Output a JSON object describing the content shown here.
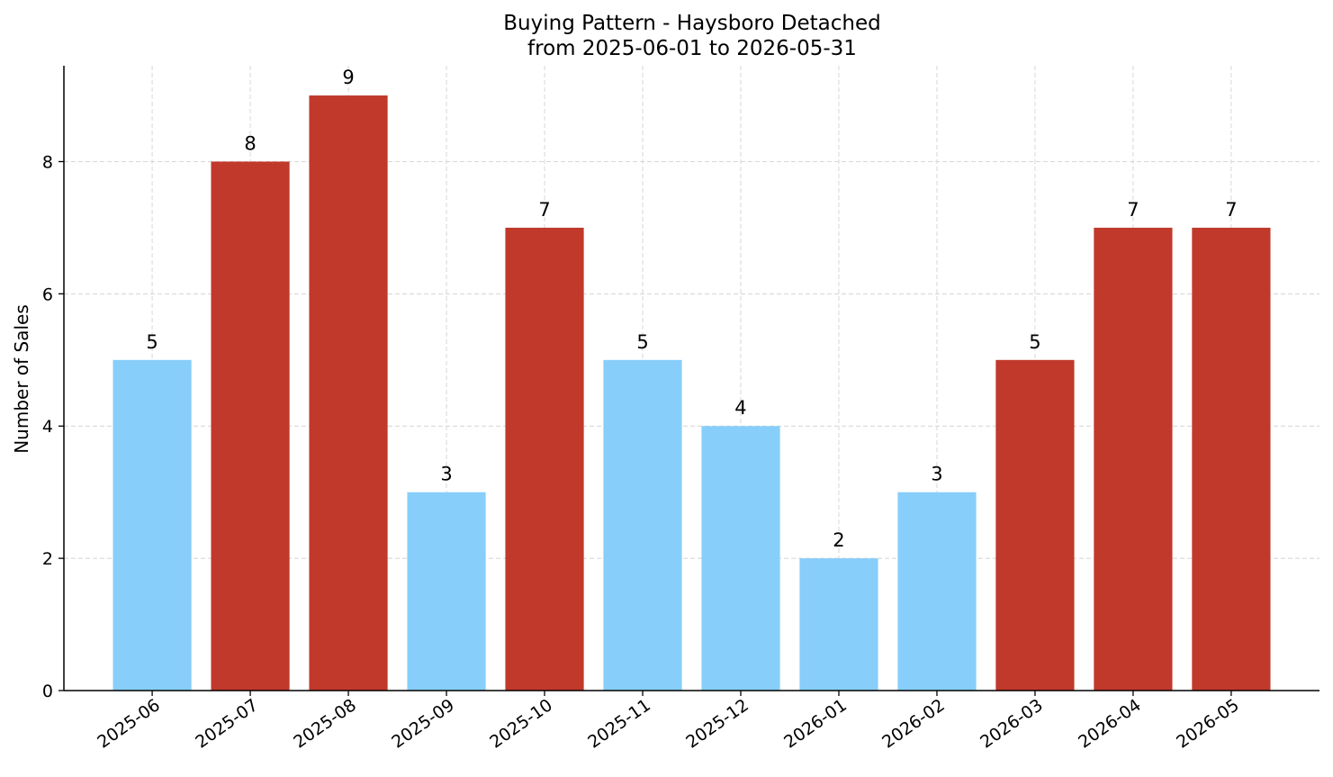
{
  "chart_data": {
    "type": "bar",
    "title": "Buying Pattern - Haysboro Detached",
    "subtitle": "from 2025-06-01 to 2026-05-31",
    "xlabel": "",
    "ylabel": "Number of Sales",
    "categories": [
      "2025-06",
      "2025-07",
      "2025-08",
      "2025-09",
      "2025-10",
      "2025-11",
      "2025-12",
      "2026-01",
      "2026-02",
      "2026-03",
      "2026-04",
      "2026-05"
    ],
    "values": [
      5,
      8,
      9,
      3,
      7,
      5,
      4,
      2,
      3,
      5,
      7,
      7
    ],
    "bar_colors": [
      "#87cefa",
      "#c0392b",
      "#c0392b",
      "#87cefa",
      "#c0392b",
      "#87cefa",
      "#87cefa",
      "#87cefa",
      "#87cefa",
      "#c0392b",
      "#c0392b",
      "#c0392b"
    ],
    "ylim": [
      0,
      9.45
    ],
    "yticks": [
      0,
      2,
      4,
      6,
      8
    ],
    "grid": true,
    "data_labels": true
  }
}
